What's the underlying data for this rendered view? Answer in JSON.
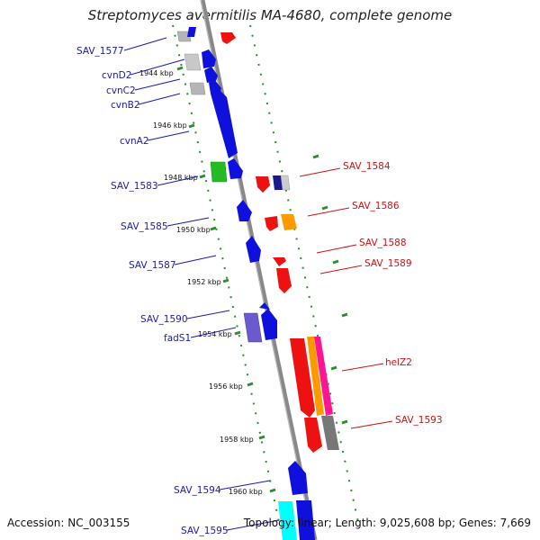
{
  "title": "Streptomyces avermitilis MA-4680, complete genome",
  "accession": "Accession: NC_003155",
  "summary": "Topology: linear; Length: 9,025,608 bp; Genes: 7,669",
  "scale_labels": [
    "1944 kbp",
    "1946 kbp",
    "1948 kbp",
    "1950 kbp",
    "1952 kbp",
    "1954 kbp",
    "1956 kbp",
    "1958 kbp",
    "1960 kbp"
  ],
  "left_genes": [
    "SAV_1577",
    "cvnD2",
    "cvnC2",
    "cvnB2",
    "cvnA2",
    "SAV_1583",
    "SAV_1585",
    "SAV_1587",
    "SAV_1590",
    "fadS1",
    "SAV_1594",
    "SAV_1595"
  ],
  "right_genes": [
    "SAV_1584",
    "SAV_1586",
    "SAV_1588",
    "SAV_1589",
    "helZ2",
    "SAV_1593"
  ],
  "colors": {
    "forward_label": "#1a1aa6",
    "reverse_label": "#cc1111",
    "backbone": "#888888",
    "tick_dots": "#2e8b2e"
  }
}
